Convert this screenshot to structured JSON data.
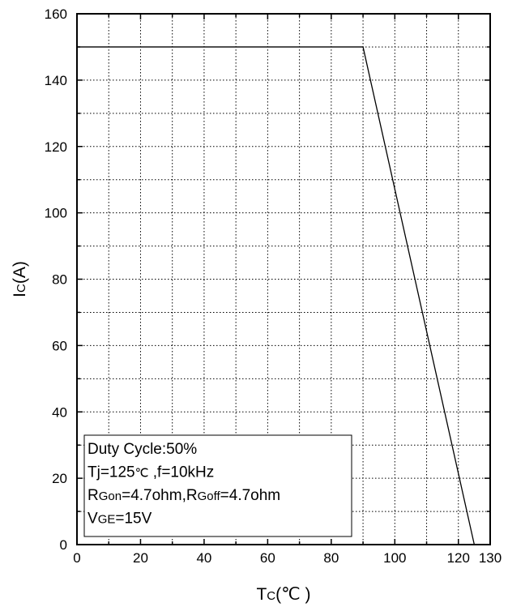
{
  "chart_data": {
    "type": "line",
    "xlabel": {
      "main": "T",
      "sub": "C",
      "unit": "(℃ )"
    },
    "ylabel": {
      "main": "I",
      "sub": "C",
      "unit": "(A)"
    },
    "xlim": [
      0,
      130
    ],
    "ylim": [
      0,
      160
    ],
    "x_ticks": [
      0,
      20,
      40,
      60,
      80,
      100,
      120,
      130
    ],
    "y_ticks": [
      0,
      20,
      40,
      60,
      80,
      100,
      120,
      140,
      160
    ],
    "x_minor_step": 10,
    "y_minor_step": 10,
    "grid": true,
    "series": [
      {
        "x": [
          0,
          90,
          125
        ],
        "y": [
          150,
          150,
          0
        ],
        "color": "#000000"
      }
    ],
    "annotation_box": {
      "position": "bottom-left",
      "lines": [
        {
          "segments": [
            {
              "text": "Duty Cycle:50%"
            }
          ]
        },
        {
          "segments": [
            {
              "text": "Tj=125"
            },
            {
              "text": "℃",
              "sub": true
            },
            {
              "text": " ,f=10kHz"
            }
          ]
        },
        {
          "segments": [
            {
              "text": "R"
            },
            {
              "text": "Gon",
              "sub": true
            },
            {
              "text": "=4.7ohm,R"
            },
            {
              "text": "Goff",
              "sub": true
            },
            {
              "text": "=4.7ohm"
            }
          ]
        },
        {
          "segments": [
            {
              "text": "V"
            },
            {
              "text": "GE",
              "sub": true
            },
            {
              "text": "=15V"
            }
          ]
        }
      ]
    }
  }
}
